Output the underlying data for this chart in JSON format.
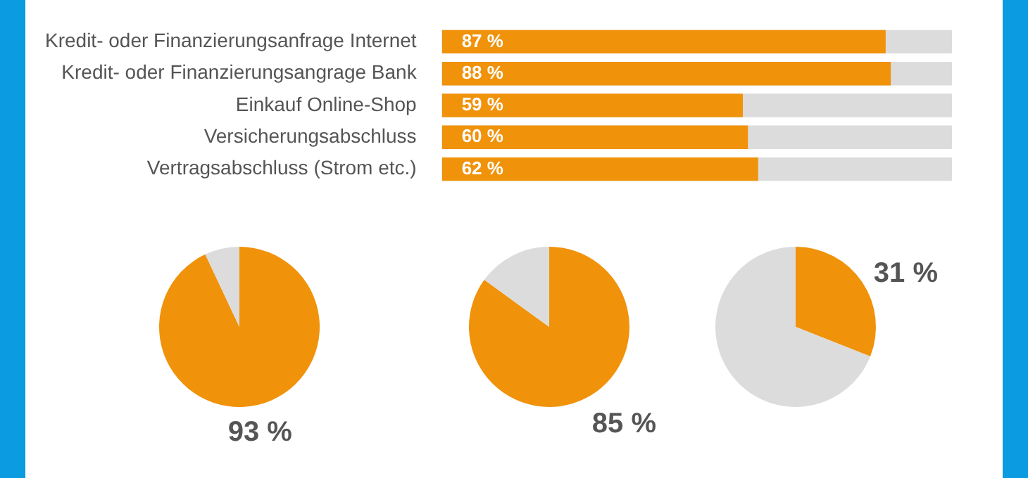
{
  "chart_data": [
    {
      "type": "bar",
      "orientation": "horizontal",
      "categories": [
        "Kredit- oder Finanzierungsanfrage Internet",
        "Kredit- oder Finanzierungsangrage Bank",
        "Einkauf Online-Shop",
        "Versicherungsabschluss",
        "Vertragsabschluss (Strom etc.)"
      ],
      "values": [
        87,
        88,
        59,
        60,
        62
      ],
      "value_labels": [
        "87 %",
        "88 %",
        "59 %",
        "60 %",
        "62 %"
      ],
      "color": "#f0920a",
      "xlim": [
        0,
        100
      ],
      "tick_labels": "y",
      "grid": false,
      "legend": false,
      "bands": [
        {
          "axis": "x",
          "from": 0,
          "to": 100,
          "color": "#dcdcdc"
        }
      ]
    },
    {
      "type": "pie",
      "categories": [
        null,
        null
      ],
      "values": [
        93,
        7
      ],
      "colors": [
        "#f0920a",
        "#dcdcdc"
      ],
      "value_labels": [
        "93 %",
        null
      ],
      "legend": false
    },
    {
      "type": "pie",
      "categories": [
        null,
        null
      ],
      "values": [
        85,
        15
      ],
      "colors": [
        "#f0920a",
        "#dcdcdc"
      ],
      "value_labels": [
        "85 %",
        null
      ],
      "legend": false
    },
    {
      "type": "pie",
      "categories": [
        null,
        null
      ],
      "values": [
        31,
        69
      ],
      "colors": [
        "#f0920a",
        "#dcdcdc"
      ],
      "value_labels": [
        "31 %",
        null
      ],
      "legend": false
    }
  ]
}
